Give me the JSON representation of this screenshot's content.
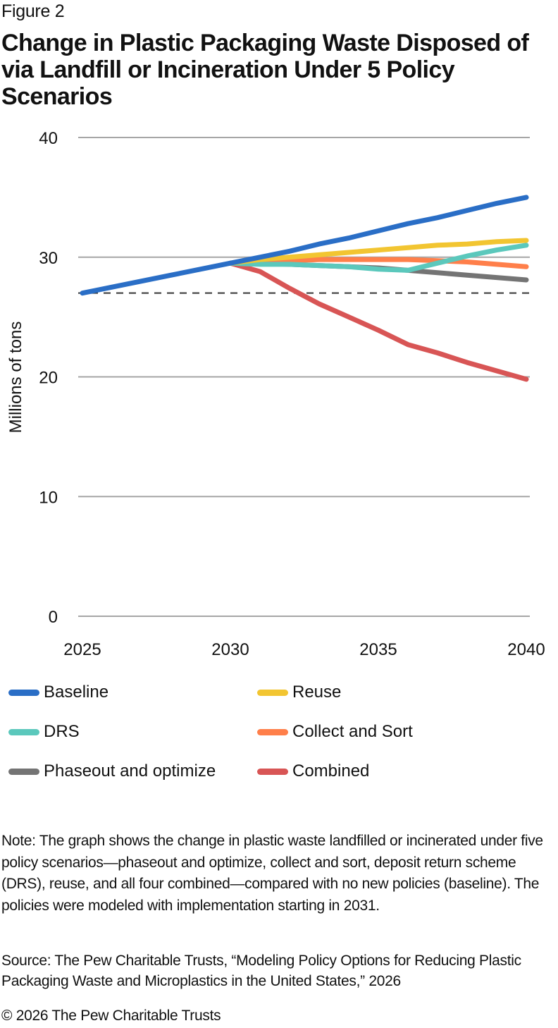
{
  "figure_label": "Figure 2",
  "title": "Change in Plastic Packaging Waste Disposed of via Landfill or Incineration Under 5 Policy Scenarios",
  "note": "Note: The graph shows the change in plastic waste landfilled or incinerated under five policy scenarios—phaseout and optimize, collect and sort, deposit return scheme (DRS), reuse, and all four combined—compared with no new policies (baseline). The policies were modeled with implementation starting in 2031.",
  "source": "Source: The Pew Charitable Trusts, “Modeling Policy Options for Reducing Plastic Packaging Waste and Microplastics in the United States,” 2026",
  "copyright": "© 2026 The Pew Charitable Trusts",
  "chart_data": {
    "type": "line",
    "title": "Change in Plastic Packaging Waste Disposed of via Landfill or Incineration Under 5 Policy Scenarios",
    "xlabel": "",
    "ylabel": "Millions of tons",
    "x": [
      2025,
      2026,
      2027,
      2028,
      2029,
      2030,
      2031,
      2032,
      2033,
      2034,
      2035,
      2036,
      2037,
      2038,
      2039,
      2040
    ],
    "xlim": [
      2025,
      2040
    ],
    "ylim": [
      0,
      40
    ],
    "x_ticks": [
      2025,
      2030,
      2035,
      2040
    ],
    "y_ticks": [
      0,
      10,
      20,
      30,
      40
    ],
    "grid": "horizontal",
    "reference_line": {
      "value": 27.0,
      "style": "dashed"
    },
    "legend_position": "bottom",
    "series": [
      {
        "name": "Baseline",
        "color": "#2a6ec6",
        "values": [
          27.0,
          27.5,
          28.0,
          28.5,
          29.0,
          29.5,
          30.0,
          30.5,
          31.1,
          31.6,
          32.2,
          32.8,
          33.3,
          33.9,
          34.5,
          35.0
        ]
      },
      {
        "name": "Reuse",
        "color": "#f2c531",
        "values": [
          null,
          null,
          null,
          null,
          null,
          29.5,
          29.8,
          30.0,
          30.2,
          30.4,
          30.6,
          30.8,
          31.0,
          31.1,
          31.3,
          31.4
        ]
      },
      {
        "name": "DRS",
        "color": "#5bc8bc",
        "values": [
          null,
          null,
          null,
          null,
          null,
          29.5,
          29.4,
          29.4,
          29.3,
          29.2,
          29.0,
          28.9,
          29.5,
          30.1,
          30.6,
          31.0
        ]
      },
      {
        "name": "Collect and Sort",
        "color": "#ff7f4a",
        "values": [
          null,
          null,
          null,
          null,
          null,
          29.5,
          29.6,
          29.7,
          29.8,
          29.8,
          29.8,
          29.8,
          29.7,
          29.6,
          29.4,
          29.2
        ]
      },
      {
        "name": "Phaseout and optimize",
        "color": "#747474",
        "values": [
          null,
          null,
          null,
          null,
          null,
          29.5,
          29.5,
          29.4,
          29.3,
          29.2,
          29.1,
          28.9,
          28.7,
          28.5,
          28.3,
          28.1
        ]
      },
      {
        "name": "Combined",
        "color": "#d85555",
        "values": [
          null,
          null,
          null,
          null,
          null,
          29.5,
          28.8,
          27.4,
          26.1,
          25.0,
          23.9,
          22.7,
          22.0,
          21.2,
          20.5,
          19.8
        ]
      }
    ]
  }
}
